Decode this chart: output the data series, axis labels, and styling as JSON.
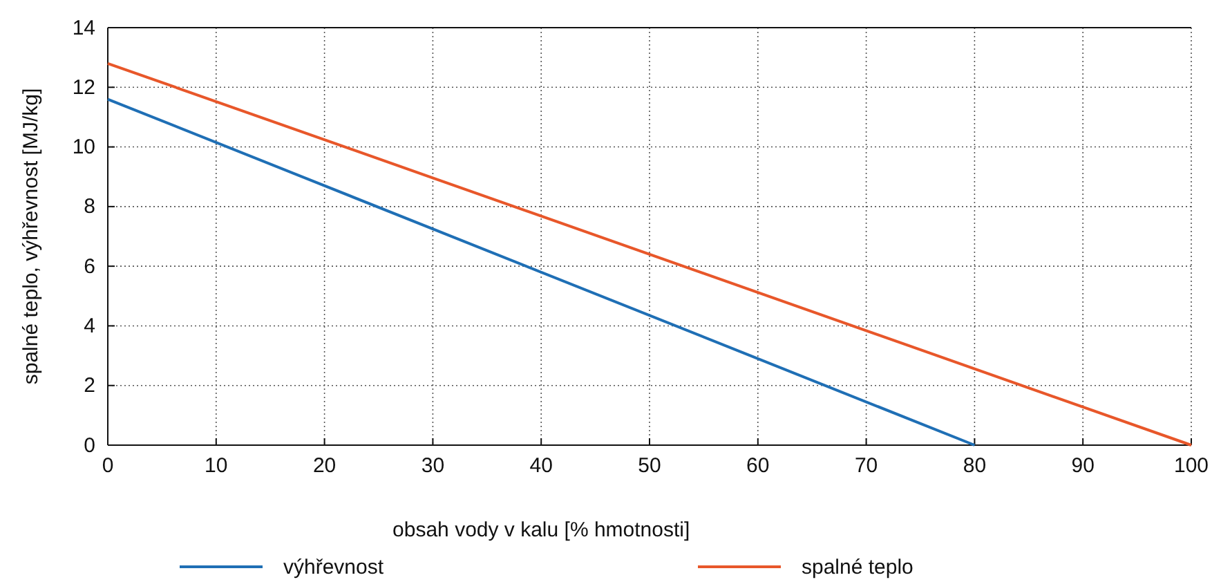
{
  "chart_data": {
    "type": "line",
    "xlabel": "obsah vody v kalu [% hmotnosti]",
    "ylabel": "spalné teplo, výhřevnost [MJ/kg]",
    "xlim": [
      0,
      100
    ],
    "xticks": [
      0,
      10,
      20,
      30,
      40,
      50,
      60,
      70,
      80,
      90,
      100
    ],
    "ylim": [
      0,
      14
    ],
    "yticks": [
      0,
      2,
      4,
      6,
      8,
      10,
      12,
      14
    ],
    "grid": true,
    "legend": "bottom",
    "line_style": "solid",
    "series": [
      {
        "name": "výhřevnost",
        "color": "#1f6fb5",
        "x": [
          0,
          80
        ],
        "values": [
          11.6,
          0
        ]
      },
      {
        "name": "spalné teplo",
        "color": "#e8572a",
        "x": [
          0,
          100
        ],
        "values": [
          12.8,
          0
        ]
      }
    ]
  }
}
